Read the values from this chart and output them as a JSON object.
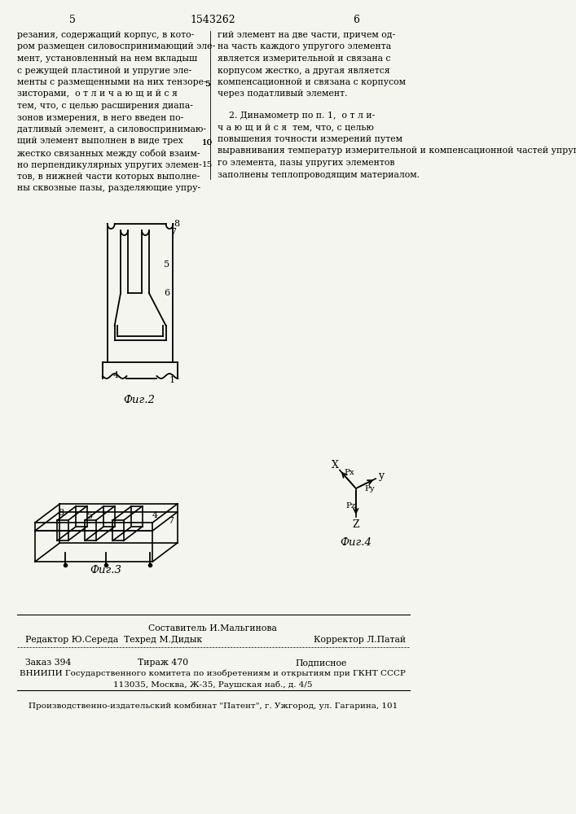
{
  "background_color": "#f5f5f0",
  "page_number_left": "5",
  "page_number_center": "1543262",
  "page_number_right": "6",
  "text_left": "резания, содержащий корпус, в кото-\nром размещен силовоспринимающий эле-\nмент, установленный на нем вкладыш\nс режущей пластиной и упругие эле-\nменты с размещенными на них тензоре-\nзисторами,  о т л и ч а ю щ и й с я\nтем, что, с целью расширения диапа-\nзонов измерения, в него введен по-\nдатливый элемент, а силовоспринимаю-\nщий элемент выполнен в виде трех\nжестко связанных между собой взаим-\nно перпендикулярных упругих элемен-\nтов, в нижней части которых выполне-\nны сквозные пазы, разделяющие упру-",
  "line_numbers_left": [
    "",
    "",
    "",
    "",
    "5",
    "",
    "",
    "",
    "",
    "10",
    "",
    "",
    "",
    ""
  ],
  "text_right": "гий элемент на две части, причем од-\nна часть каждого упругого элемента\nявляется измерительной и связана с\nкорпусом жестко, а другая является\nкомпенсационной и связана с корпусом\nчерез податливый элемент.",
  "text_right2": "2. Динамометр по п. 1,  о т л и-\nч а ю щ и й с я  тем, что, с целью\nповышения точности измерений путем\nвыравнивания температур измерительной и компенсационной частей упруго-\nго элемента, пазы упругих элементов\nзаполнены теплопроводящим материалом.",
  "line_numbers_right": [
    "",
    "",
    "",
    "",
    "5",
    "",
    "",
    "",
    "",
    "10",
    "",
    "",
    "",
    "",
    "15"
  ],
  "fig2_label": "Фиг.2",
  "fig3_label": "Фиг.3",
  "fig4_label": "Фиг.4",
  "footer_composer": "Составитель И.Мальгинова",
  "footer_editor": "Редактор Ю.Середа",
  "footer_techred": "Техред М.Дидык",
  "footer_corrector": "Корректор Л.Патай",
  "footer_order": "Заказ 394",
  "footer_tirazh": "Тираж 470",
  "footer_podpisnoe": "Подписное",
  "footer_vniiipi": "ВНИИПИ Государственного комитета по изобретениям и открытиям при ГКНТ СССР",
  "footer_address": "113035, Москва, Ж-35, Раушская наб., д. 4/5",
  "footer_production": "Производственно-издательский комбинат \"Патент\", г. Ужгород, ул. Гагарина, 101"
}
